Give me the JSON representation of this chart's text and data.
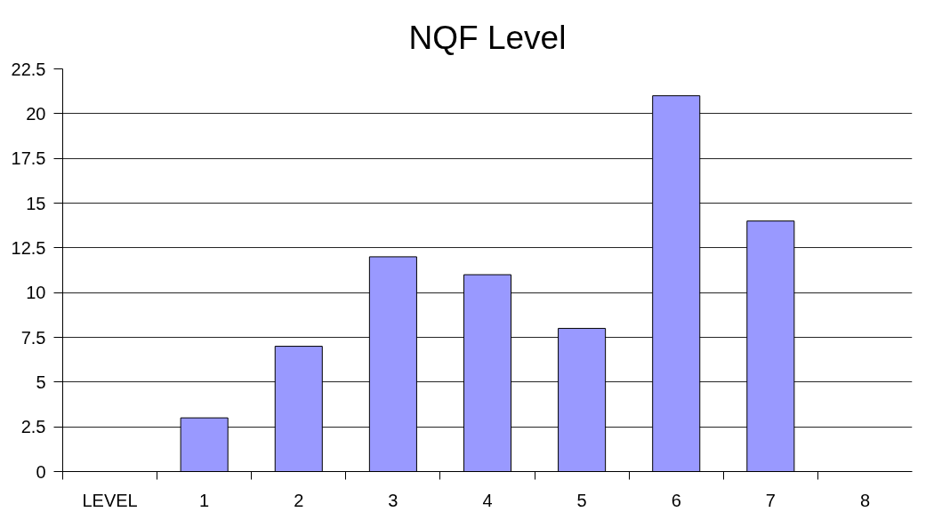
{
  "chart_data": {
    "type": "bar",
    "title": "NQF Level",
    "categories": [
      "LEVEL",
      "1",
      "2",
      "3",
      "4",
      "5",
      "6",
      "7",
      "8"
    ],
    "values": [
      null,
      3,
      7,
      12,
      11,
      8,
      21,
      14,
      null
    ],
    "color": "#9999ff",
    "ylim": [
      0,
      22.5
    ],
    "yticks": [
      0,
      2.5,
      5,
      7.5,
      10,
      12.5,
      15,
      17.5,
      20,
      22.5
    ],
    "grid": "y"
  }
}
